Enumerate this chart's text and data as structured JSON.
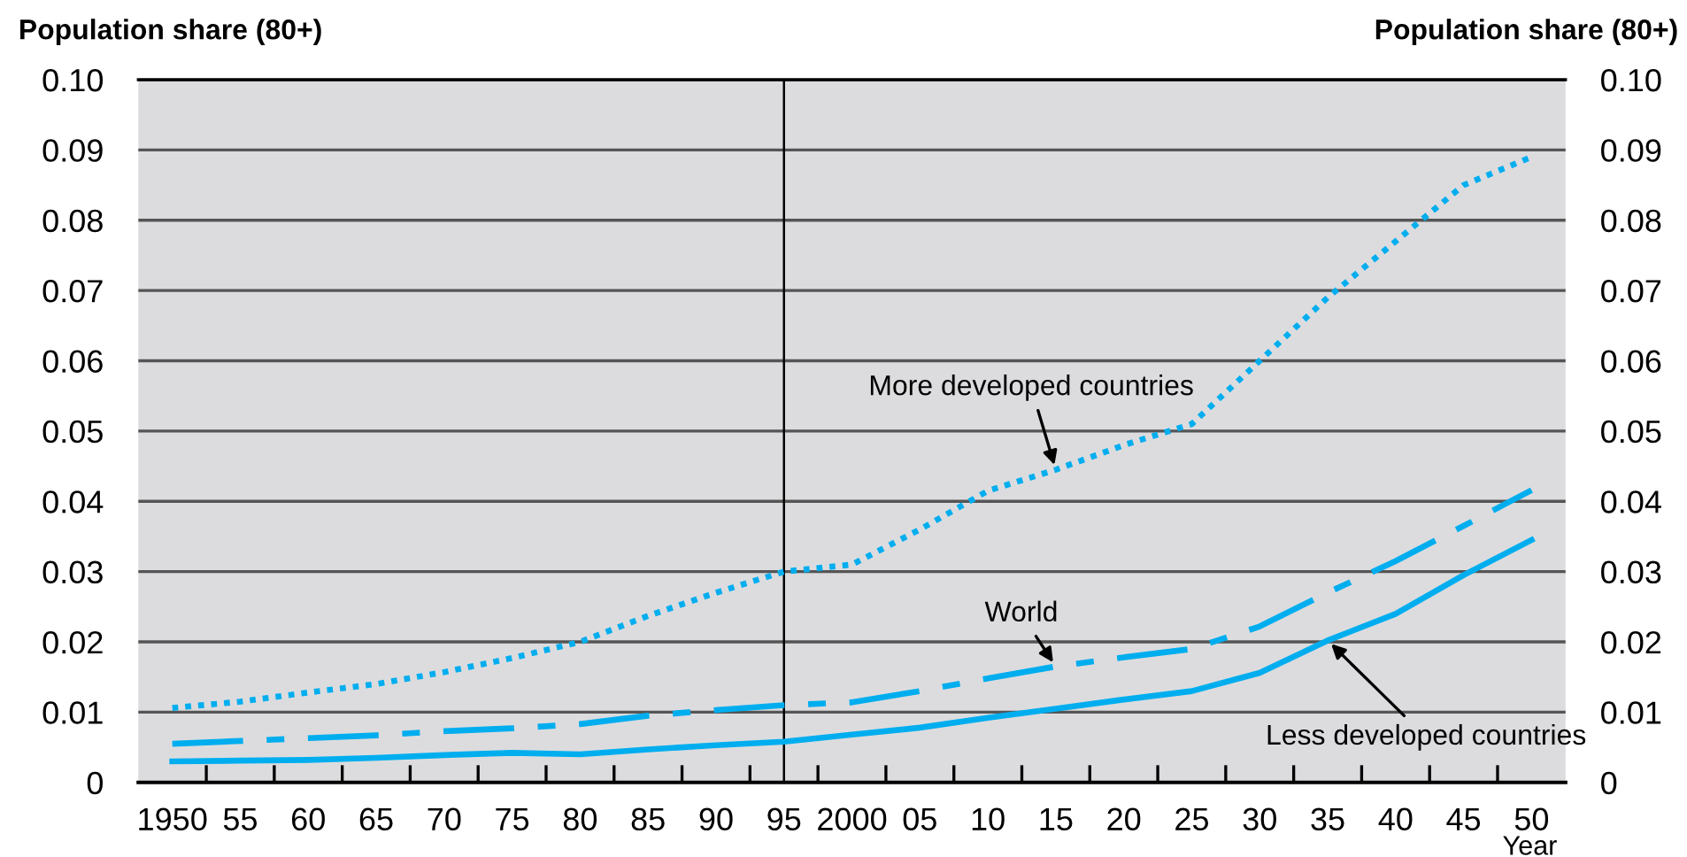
{
  "chart_data": {
    "type": "line",
    "ylabel": "Population share (80+)",
    "y2label": "Population share (80+)",
    "xlabel": "Year",
    "x": [
      1950,
      1955,
      1960,
      1965,
      1970,
      1975,
      1980,
      1985,
      1990,
      1995,
      2000,
      2005,
      2010,
      2015,
      2020,
      2025,
      2030,
      2035,
      2040,
      2045,
      2050
    ],
    "series": [
      {
        "name": "More developed countries",
        "color": "#00aeef",
        "line_style": "dotted",
        "values": [
          0.0106,
          0.0115,
          0.0128,
          0.014,
          0.0157,
          0.0177,
          0.02,
          0.0237,
          0.027,
          0.03,
          0.031,
          0.036,
          0.0415,
          0.0445,
          0.048,
          0.051,
          0.06,
          0.069,
          0.077,
          0.085,
          0.089
        ]
      },
      {
        "name": "World",
        "color": "#00aeef",
        "line_style": "dashdot",
        "values": [
          0.0055,
          0.0059,
          0.0063,
          0.0067,
          0.0073,
          0.0077,
          0.0083,
          0.0095,
          0.0103,
          0.011,
          0.0114,
          0.013,
          0.0148,
          0.0165,
          0.0178,
          0.019,
          0.0222,
          0.027,
          0.0315,
          0.0365,
          0.0416
        ]
      },
      {
        "name": "Less developed countries",
        "color": "#00aeef",
        "line_style": "solid",
        "values": [
          0.003,
          0.0031,
          0.0032,
          0.0035,
          0.0039,
          0.0042,
          0.004,
          0.0047,
          0.0053,
          0.0058,
          0.0068,
          0.0078,
          0.0092,
          0.0105,
          0.0118,
          0.013,
          0.0156,
          0.0202,
          0.024,
          0.0295,
          0.0345
        ]
      }
    ],
    "ref_lines": [
      {
        "axis": "x",
        "value": 1995,
        "color": "#000000"
      }
    ],
    "xlim": [
      1947.5,
      2052.5
    ],
    "xticks": [
      {
        "value": 1950,
        "label": "1950"
      },
      {
        "value": 1952.5,
        "label": null
      },
      {
        "value": 1955,
        "label": "55"
      },
      {
        "value": 1957.5,
        "label": null
      },
      {
        "value": 1960,
        "label": "60"
      },
      {
        "value": 1962.5,
        "label": null
      },
      {
        "value": 1965,
        "label": "65"
      },
      {
        "value": 1967.5,
        "label": null
      },
      {
        "value": 1970,
        "label": "70"
      },
      {
        "value": 1972.5,
        "label": null
      },
      {
        "value": 1975,
        "label": "75"
      },
      {
        "value": 1977.5,
        "label": null
      },
      {
        "value": 1980,
        "label": "80"
      },
      {
        "value": 1982.5,
        "label": null
      },
      {
        "value": 1985,
        "label": "85"
      },
      {
        "value": 1987.5,
        "label": null
      },
      {
        "value": 1990,
        "label": "90"
      },
      {
        "value": 1992.5,
        "label": null
      },
      {
        "value": 1995,
        "label": "95"
      },
      {
        "value": 1997.5,
        "label": null
      },
      {
        "value": 2000,
        "label": "2000"
      },
      {
        "value": 2002.5,
        "label": null
      },
      {
        "value": 2005,
        "label": "05"
      },
      {
        "value": 2007.5,
        "label": null
      },
      {
        "value": 2010,
        "label": "10"
      },
      {
        "value": 2012.5,
        "label": null
      },
      {
        "value": 2015,
        "label": "15"
      },
      {
        "value": 2017.5,
        "label": null
      },
      {
        "value": 2020,
        "label": "20"
      },
      {
        "value": 2022.5,
        "label": null
      },
      {
        "value": 2025,
        "label": "25"
      },
      {
        "value": 2027.5,
        "label": null
      },
      {
        "value": 2030,
        "label": "30"
      },
      {
        "value": 2032.5,
        "label": null
      },
      {
        "value": 2035,
        "label": "35"
      },
      {
        "value": 2037.5,
        "label": null
      },
      {
        "value": 2040,
        "label": "40"
      },
      {
        "value": 2042.5,
        "label": null
      },
      {
        "value": 2045,
        "label": "45"
      },
      {
        "value": 2047.5,
        "label": null
      },
      {
        "value": 2050,
        "label": "50"
      }
    ],
    "ylim": [
      0,
      0.1
    ],
    "yticks": [
      0,
      0.01,
      0.02,
      0.03,
      0.04,
      0.05,
      0.06,
      0.07,
      0.08,
      0.09,
      {
        "value": 0.1,
        "label": "0.10"
      }
    ],
    "y2lim": [
      0,
      0.1
    ],
    "y2ticks": [
      0,
      0.01,
      0.02,
      0.03,
      0.04,
      0.05,
      0.06,
      0.07,
      0.08,
      0.09,
      {
        "value": 0.1,
        "label": "0.10"
      }
    ],
    "grid": "y",
    "legend": false
  }
}
